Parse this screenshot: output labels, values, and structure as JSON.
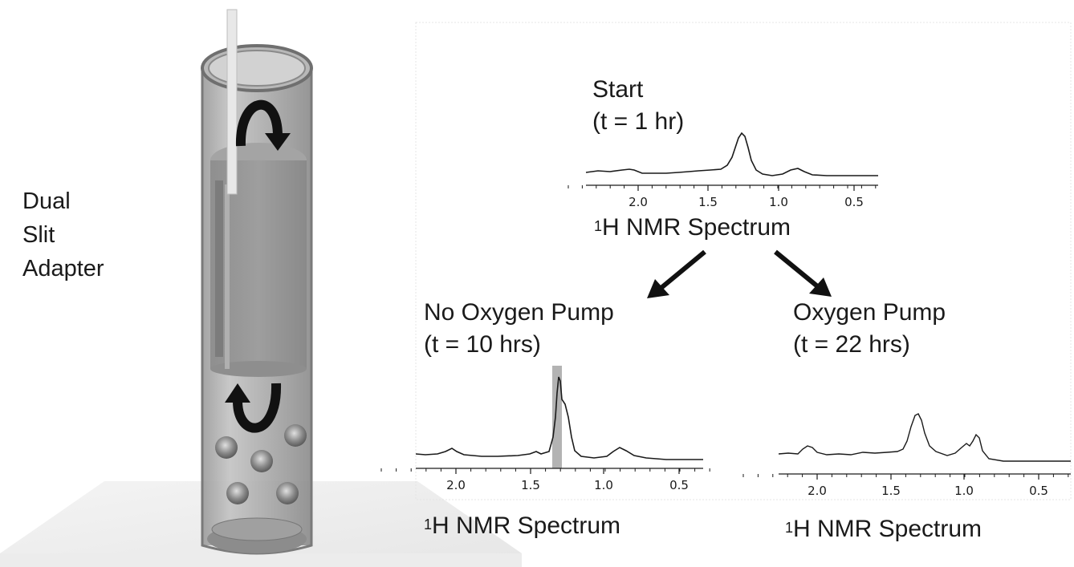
{
  "adapter": {
    "label_lines": [
      "Dual",
      "Slit",
      "Adapter"
    ]
  },
  "spectra": [
    {
      "id": "start",
      "title_lines": [
        "Start",
        "(t = 1 hr)"
      ],
      "caption_iso": "1",
      "caption_text": "H NMR Spectrum",
      "ticks": [
        "2.0",
        "1.5",
        "1.0",
        "0.5"
      ]
    },
    {
      "id": "no-oxygen-pump",
      "title_lines": [
        "No Oxygen Pump",
        "(t = 10 hrs)"
      ],
      "caption_iso": "1",
      "caption_text": "H NMR Spectrum",
      "ticks": [
        "2.0",
        "1.5",
        "1.0",
        "0.5"
      ]
    },
    {
      "id": "oxygen-pump",
      "title_lines": [
        "Oxygen Pump",
        "(t = 22 hrs)"
      ],
      "caption_iso": "1",
      "caption_text": "H NMR Spectrum",
      "ticks": [
        "2.0",
        "1.5",
        "1.0",
        "0.5"
      ]
    }
  ],
  "colors": {
    "ink": "#1a1a1a",
    "highlight": "#9a9a9a",
    "tube": "#8c8c8c"
  }
}
